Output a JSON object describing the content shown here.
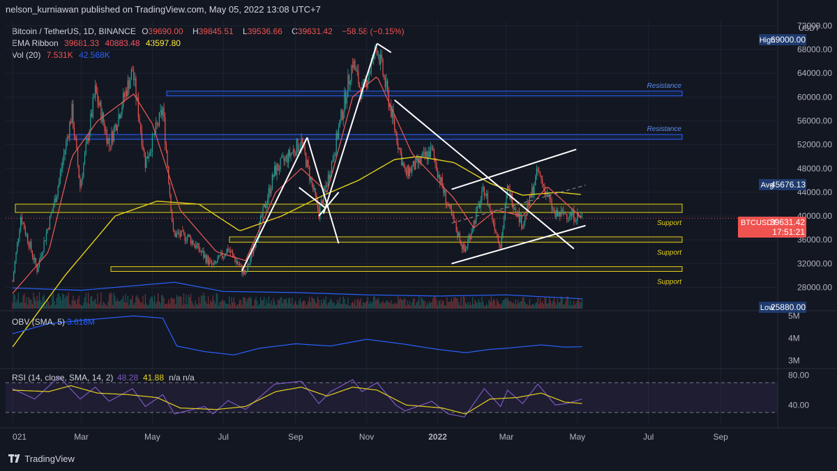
{
  "header": {
    "published": "nelson_kurniawan published on TradingView.com, May 05, 2022 13:08 UTC+7"
  },
  "legend": {
    "symbol": "Bitcoin / TetherUS, 1D, BINANCE",
    "o_label": "O",
    "o_value": "39690.00",
    "h_label": "H",
    "h_value": "39845.51",
    "l_label": "L",
    "l_value": "39536.66",
    "c_label": "C",
    "c_value": "39631.42",
    "change": "−58.58 (−0.15%)",
    "ema_label": "EMA Ribbon",
    "ema_values": [
      "39681.33",
      "40883.48",
      "43597.80"
    ],
    "vol_label": "Vol (20)",
    "vol_values": [
      "7.531K",
      "42.568K"
    ]
  },
  "chart_data": {
    "type": "line",
    "title": "",
    "symbol": "BTCUSDT",
    "interval": "1D",
    "currency_label": "USDT",
    "x_tick_labels": [
      "021",
      "Mar",
      "May",
      "Jul",
      "Sep",
      "Nov",
      "2022",
      "Mar",
      "May",
      "Jul",
      "Sep"
    ],
    "x_tick_dates": [
      "2021-01-01",
      "2021-03-01",
      "2021-05-01",
      "2021-07-01",
      "2021-09-01",
      "2021-11-01",
      "2022-01-01",
      "2022-03-01",
      "2022-05-01",
      "2022-07-01",
      "2022-09-01"
    ],
    "x_range": [
      "2020-12-26",
      "2022-10-20"
    ],
    "price_ticks": [
      "72000.00",
      "68000.00",
      "64000.00",
      "60000.00",
      "56000.00",
      "52000.00",
      "48000.00",
      "44000.00",
      "40000.00",
      "36000.00",
      "32000.00",
      "28000.00"
    ],
    "ylim": [
      24200,
      72800
    ],
    "price_series_approx": [
      [
        "2021-01-01",
        29000
      ],
      [
        "2021-01-08",
        40000
      ],
      [
        "2021-01-22",
        31000
      ],
      [
        "2021-02-08",
        44000
      ],
      [
        "2021-02-21",
        57500
      ],
      [
        "2021-02-28",
        45000
      ],
      [
        "2021-03-13",
        61000
      ],
      [
        "2021-03-25",
        52000
      ],
      [
        "2021-04-14",
        64500
      ],
      [
        "2021-04-25",
        49000
      ],
      [
        "2021-05-10",
        58000
      ],
      [
        "2021-05-19",
        37000
      ],
      [
        "2021-06-01",
        36500
      ],
      [
        "2021-06-22",
        31500
      ],
      [
        "2021-07-05",
        34500
      ],
      [
        "2021-07-20",
        30000
      ],
      [
        "2021-08-14",
        47500
      ],
      [
        "2021-09-06",
        52500
      ],
      [
        "2021-09-21",
        40500
      ],
      [
        "2021-10-01",
        48000
      ],
      [
        "2021-10-20",
        66000
      ],
      [
        "2021-10-28",
        60500
      ],
      [
        "2021-11-10",
        68500
      ],
      [
        "2021-11-26",
        54000
      ],
      [
        "2021-12-04",
        47000
      ],
      [
        "2021-12-27",
        51000
      ],
      [
        "2022-01-10",
        41500
      ],
      [
        "2022-01-24",
        34000
      ],
      [
        "2022-02-10",
        44500
      ],
      [
        "2022-02-24",
        35000
      ],
      [
        "2022-03-02",
        44500
      ],
      [
        "2022-03-15",
        38500
      ],
      [
        "2022-03-28",
        47500
      ],
      [
        "2022-04-12",
        40000
      ],
      [
        "2022-04-22",
        40500
      ],
      [
        "2022-05-05",
        39631
      ]
    ],
    "ema_fast_approx": [
      [
        "2021-01-01",
        27000
      ],
      [
        "2021-02-01",
        34000
      ],
      [
        "2021-02-21",
        50000
      ],
      [
        "2021-03-15",
        56000
      ],
      [
        "2021-04-15",
        60500
      ],
      [
        "2021-05-01",
        55500
      ],
      [
        "2021-05-25",
        41000
      ],
      [
        "2021-06-25",
        34000
      ],
      [
        "2021-07-20",
        32500
      ],
      [
        "2021-08-15",
        44000
      ],
      [
        "2021-09-06",
        48000
      ],
      [
        "2021-09-28",
        44000
      ],
      [
        "2021-10-20",
        60000
      ],
      [
        "2021-11-10",
        63500
      ],
      [
        "2021-12-10",
        50500
      ],
      [
        "2022-01-15",
        43000
      ],
      [
        "2022-02-01",
        38000
      ],
      [
        "2022-02-20",
        41000
      ],
      [
        "2022-03-15",
        40000
      ],
      [
        "2022-04-05",
        45000
      ],
      [
        "2022-05-05",
        39681
      ]
    ],
    "ema_slow_approx": [
      [
        "2021-01-01",
        18000
      ],
      [
        "2021-02-15",
        30000
      ],
      [
        "2021-03-30",
        40000
      ],
      [
        "2021-05-05",
        42500
      ],
      [
        "2021-06-10",
        42000
      ],
      [
        "2021-07-15",
        37500
      ],
      [
        "2021-08-20",
        40000
      ],
      [
        "2021-09-25",
        43500
      ],
      [
        "2021-10-25",
        46000
      ],
      [
        "2021-11-25",
        49500
      ],
      [
        "2021-12-15",
        50000
      ],
      [
        "2022-01-15",
        49000
      ],
      [
        "2022-02-15",
        45500
      ],
      [
        "2022-03-15",
        43500
      ],
      [
        "2022-04-15",
        44000
      ],
      [
        "2022-05-05",
        43598
      ]
    ],
    "annotations": {
      "resistance_zones": [
        [
          60200,
          61000
        ],
        [
          52900,
          53700
        ]
      ],
      "support_zones": [
        [
          40600,
          42000
        ],
        [
          35600,
          36500
        ],
        [
          30700,
          31500
        ]
      ],
      "resistance_label": "Resistance",
      "support_label": "Support"
    },
    "price_labels": {
      "high_label": "High",
      "high_value": "69000.00",
      "avg_label": "Avg",
      "avg_value": "45676.13",
      "low_label": "Low",
      "low_value": "25880.00",
      "last_label": "BTCUSDT",
      "last_value": "39631.42",
      "countdown": "17:51:21"
    },
    "volume_ma_approx": [
      [
        "2021-01-01",
        90
      ],
      [
        "2021-03-01",
        80
      ],
      [
        "2021-05-20",
        115
      ],
      [
        "2021-07-01",
        75
      ],
      [
        "2021-09-01",
        70
      ],
      [
        "2021-11-01",
        60
      ],
      [
        "2022-01-01",
        55
      ],
      [
        "2022-03-01",
        60
      ],
      [
        "2022-05-05",
        43
      ]
    ],
    "obv": {
      "label": "OBV (SMA, 5)",
      "value": "3.618M",
      "ticks": [
        "5M",
        "4M",
        "3M"
      ],
      "ylim": [
        2700,
        5200
      ],
      "series_approx": [
        [
          "2021-01-01",
          4200
        ],
        [
          "2021-02-01",
          4650
        ],
        [
          "2021-03-01",
          4800
        ],
        [
          "2021-04-15",
          5000
        ],
        [
          "2021-05-10",
          4900
        ],
        [
          "2021-05-22",
          3650
        ],
        [
          "2021-06-15",
          3400
        ],
        [
          "2021-07-10",
          3250
        ],
        [
          "2021-08-01",
          3550
        ],
        [
          "2021-09-01",
          3750
        ],
        [
          "2021-10-01",
          3650
        ],
        [
          "2021-11-01",
          3950
        ],
        [
          "2021-12-01",
          3750
        ],
        [
          "2022-01-01",
          3500
        ],
        [
          "2022-01-25",
          3350
        ],
        [
          "2022-02-15",
          3500
        ],
        [
          "2022-03-01",
          3550
        ],
        [
          "2022-03-31",
          3700
        ],
        [
          "2022-04-20",
          3600
        ],
        [
          "2022-05-05",
          3618
        ]
      ]
    },
    "rsi": {
      "label": "RSI (14, close, SMA, 14, 2)",
      "value": "48.28",
      "sma_value": "41.88",
      "extra": "n/a n/a",
      "ticks": [
        "80.00",
        "40.00"
      ],
      "ylim": [
        15,
        88
      ],
      "bands": [
        70,
        30
      ],
      "series_approx": [
        [
          "2021-01-01",
          62
        ],
        [
          "2021-01-20",
          48
        ],
        [
          "2021-02-10",
          78
        ],
        [
          "2021-02-28",
          48
        ],
        [
          "2021-03-13",
          64
        ],
        [
          "2021-03-25",
          45
        ],
        [
          "2021-04-14",
          62
        ],
        [
          "2021-04-25",
          38
        ],
        [
          "2021-05-10",
          54
        ],
        [
          "2021-05-20",
          28
        ],
        [
          "2021-06-15",
          38
        ],
        [
          "2021-06-22",
          28
        ],
        [
          "2021-07-05",
          46
        ],
        [
          "2021-07-20",
          34
        ],
        [
          "2021-08-14",
          68
        ],
        [
          "2021-09-06",
          72
        ],
        [
          "2021-09-21",
          42
        ],
        [
          "2021-10-01",
          58
        ],
        [
          "2021-10-20",
          74
        ],
        [
          "2021-10-28",
          58
        ],
        [
          "2021-11-10",
          70
        ],
        [
          "2021-11-26",
          40
        ],
        [
          "2021-12-04",
          32
        ],
        [
          "2021-12-27",
          45
        ],
        [
          "2022-01-10",
          28
        ],
        [
          "2022-01-24",
          24
        ],
        [
          "2022-02-10",
          62
        ],
        [
          "2022-02-24",
          38
        ],
        [
          "2022-03-02",
          60
        ],
        [
          "2022-03-15",
          42
        ],
        [
          "2022-03-28",
          68
        ],
        [
          "2022-04-12",
          40
        ],
        [
          "2022-04-22",
          42
        ],
        [
          "2022-05-05",
          48
        ]
      ],
      "sma_approx": [
        [
          "2021-01-01",
          60
        ],
        [
          "2021-02-01",
          58
        ],
        [
          "2021-02-20",
          66
        ],
        [
          "2021-03-15",
          56
        ],
        [
          "2021-04-10",
          54
        ],
        [
          "2021-05-05",
          50
        ],
        [
          "2021-05-25",
          36
        ],
        [
          "2021-06-25",
          34
        ],
        [
          "2021-07-20",
          38
        ],
        [
          "2021-08-15",
          58
        ],
        [
          "2021-09-06",
          64
        ],
        [
          "2021-09-28",
          52
        ],
        [
          "2021-10-20",
          64
        ],
        [
          "2021-11-10",
          60
        ],
        [
          "2021-12-05",
          40
        ],
        [
          "2022-01-05",
          36
        ],
        [
          "2022-01-25",
          28
        ],
        [
          "2022-02-15",
          48
        ],
        [
          "2022-03-10",
          50
        ],
        [
          "2022-03-31",
          56
        ],
        [
          "2022-04-20",
          44
        ],
        [
          "2022-05-05",
          42
        ]
      ]
    }
  },
  "footer": {
    "brand": "TradingView"
  },
  "colors": {
    "background": "#131722",
    "grid": "#1f2330",
    "up": "#26a69a",
    "down": "#ef5350",
    "ema_fast": "#ef5350",
    "ema_mid": "#26a69a",
    "ema_slow": "#e6d21c",
    "support": "#e6d21c",
    "resistance": "#2962ff",
    "obv": "#2962ff",
    "rsi": "#7e57c2",
    "rsi_sma": "#e6d21c",
    "drawing": "#ffffff"
  }
}
